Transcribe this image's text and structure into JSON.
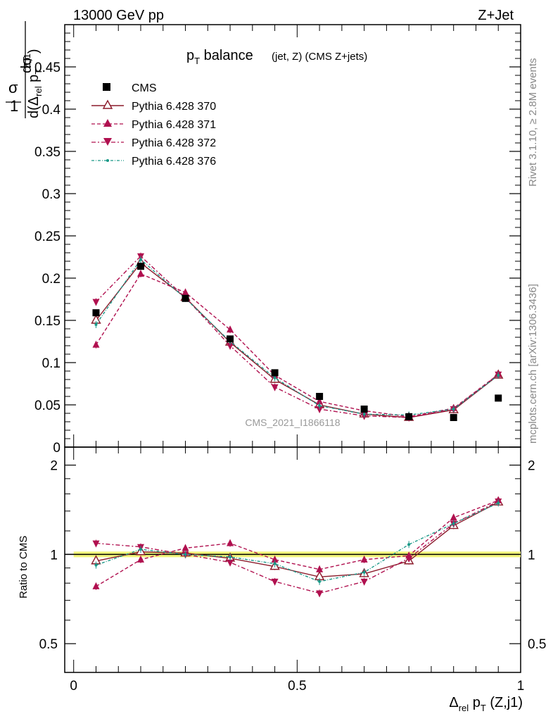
{
  "header": {
    "left": "13000 GeV pp",
    "right": "Z+Jet"
  },
  "title": {
    "main": "p",
    "main_sub": "T",
    "main_rest": " balance",
    "paren": "(jet, Z) (CMS Z+jets)"
  },
  "side_labels": {
    "rivet": "Rivet 3.1.10, ≥ 2.8M events",
    "mcplots": "mcplots.cern.ch [arXiv:1306.3436]"
  },
  "watermark": "CMS_2021_I1866118",
  "y_label": {
    "one": "1",
    "sigma": "σ",
    "dsigma": "dσ",
    "d_prefix": "d(Δ",
    "rel": "rel",
    "p": " p",
    "t": "T",
    "zj": "Z,j1",
    "close": ")"
  },
  "ratio_label": "Ratio to CMS",
  "x_label": {
    "delta": "Δ",
    "rel": "rel",
    "p": " p",
    "t": "T",
    "rest": " (Z,j1)"
  },
  "colors": {
    "cms": "#000000",
    "p370": "#8b1a2a",
    "p371": "#b0104f",
    "p372": "#b0104f",
    "p376": "#1a9988",
    "band": "#f2f57a"
  },
  "chart_data": [
    {
      "type": "scatter",
      "panel": "main",
      "xlabel": "Δrel pT (Z,j1)",
      "ylabel": "1/σ dσ/d(Δrel pT^(Z,j1))",
      "xlim": [
        -0.02,
        1.0
      ],
      "ylim": [
        0,
        0.5
      ],
      "yticks": [
        0,
        0.05,
        0.1,
        0.15,
        0.2,
        0.25,
        0.3,
        0.35,
        0.4,
        0.45
      ],
      "ytick_labels": [
        "0",
        "0.05",
        "0.1",
        "0.15",
        "0.2",
        "0.25",
        "0.3",
        "0.35",
        "0.4",
        "0.45"
      ],
      "legend_position": "top-left",
      "x": [
        0.05,
        0.15,
        0.25,
        0.35,
        0.45,
        0.55,
        0.65,
        0.75,
        0.85,
        0.95
      ],
      "series": [
        {
          "name": "CMS",
          "marker": "square",
          "line": "none",
          "values": [
            0.159,
            0.214,
            0.176,
            0.128,
            0.088,
            0.06,
            0.045,
            0.036,
            0.035,
            0.058
          ]
        },
        {
          "name": "Pythia 6.428 370",
          "marker": "triangle-up-open",
          "line": "solid",
          "values": [
            0.15,
            0.218,
            0.177,
            0.124,
            0.08,
            0.05,
            0.039,
            0.035,
            0.044,
            0.085
          ]
        },
        {
          "name": "Pythia 6.428 371",
          "marker": "triangle-up",
          "line": "dashed",
          "values": [
            0.121,
            0.205,
            0.183,
            0.139,
            0.085,
            0.054,
            0.043,
            0.036,
            0.046,
            0.086
          ]
        },
        {
          "name": "Pythia 6.428 372",
          "marker": "triangle-down",
          "line": "dashdot",
          "values": [
            0.172,
            0.226,
            0.177,
            0.12,
            0.071,
            0.045,
            0.037,
            0.035,
            0.045,
            0.086
          ]
        },
        {
          "name": "Pythia 6.428 376",
          "marker": "dot",
          "line": "dashdot",
          "values": [
            0.145,
            0.222,
            0.176,
            0.125,
            0.082,
            0.049,
            0.039,
            0.038,
            0.045,
            0.085
          ]
        }
      ]
    },
    {
      "type": "line",
      "panel": "ratio",
      "ylabel": "Ratio to CMS",
      "xlim": [
        -0.02,
        1.0
      ],
      "ylim": [
        0.4,
        2.3
      ],
      "yscale": "log",
      "yticks": [
        0.5,
        1,
        2
      ],
      "ytick_labels": [
        "0.5",
        "1",
        "2"
      ],
      "xticks": [
        0,
        0.5,
        1
      ],
      "xtick_labels": [
        "0",
        "0.5",
        "1"
      ],
      "x": [
        0.05,
        0.15,
        0.25,
        0.35,
        0.45,
        0.55,
        0.65,
        0.75,
        0.85,
        0.95
      ],
      "series": [
        {
          "name": "Pythia 6.428 370",
          "values": [
            0.95,
            1.02,
            1.01,
            0.97,
            0.91,
            0.84,
            0.86,
            0.95,
            1.25,
            1.5
          ]
        },
        {
          "name": "Pythia 6.428 371",
          "values": [
            0.78,
            0.96,
            1.05,
            1.09,
            0.96,
            0.89,
            0.96,
            0.99,
            1.33,
            1.52
          ]
        },
        {
          "name": "Pythia 6.428 372",
          "values": [
            1.09,
            1.06,
            1.0,
            0.94,
            0.81,
            0.74,
            0.81,
            0.97,
            1.27,
            1.51
          ]
        },
        {
          "name": "Pythia 6.428 376",
          "values": [
            0.92,
            1.04,
            1.0,
            0.98,
            0.93,
            0.81,
            0.87,
            1.08,
            1.27,
            1.49
          ]
        }
      ]
    }
  ]
}
